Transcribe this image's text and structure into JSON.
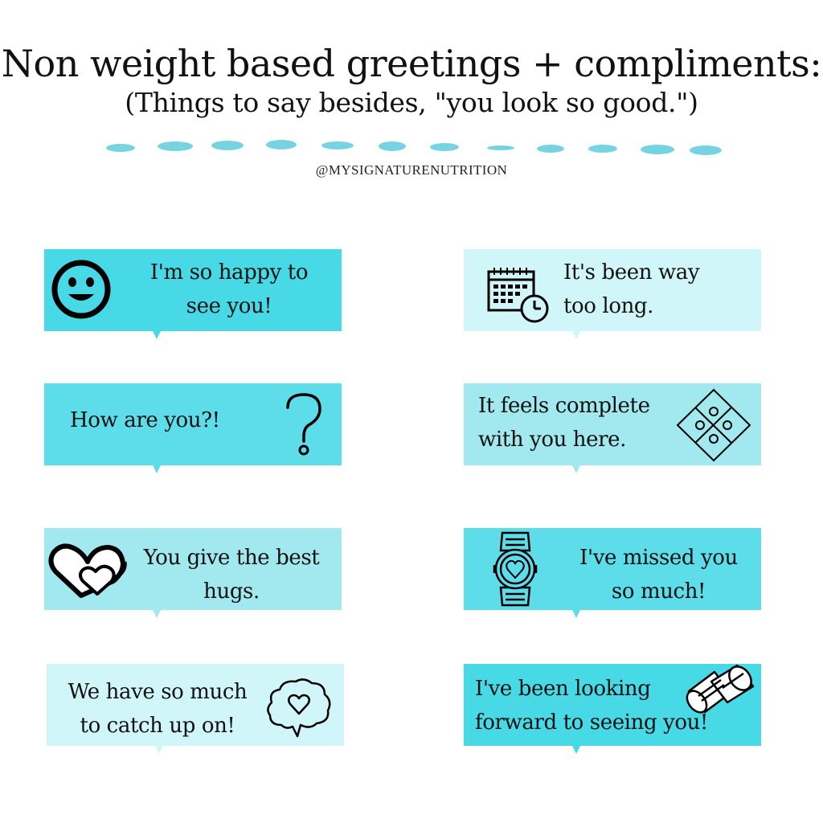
{
  "header": {
    "title": "Non weight based greetings + compliments:",
    "subtitle": "(Things to say besides, \"you look so good.\")",
    "handle": "@MYSIGNATURENUTRITION"
  },
  "colors": {
    "cyan": "#47d9e6",
    "light_cyan": "#d0f6fa",
    "pale_cyan": "#a2e8ef",
    "mid_cyan": "#5ddde9",
    "dash": "#76d3e2"
  },
  "cards": [
    {
      "line1": "I'm so happy to",
      "line2": "see you!",
      "icon": "smiley-face-icon",
      "color": "#47d9e6"
    },
    {
      "line1": "It's been way",
      "line2": "too long.",
      "icon": "calendar-clock-icon",
      "color": "#d0f6fa"
    },
    {
      "line1": "How are you?!",
      "icon": "question-mark-icon",
      "color": "#5ddde9"
    },
    {
      "line1": "It feels complete",
      "line2": "with you here.",
      "icon": "puzzle-icon",
      "color": "#a2e8ef"
    },
    {
      "line1": "You give the best",
      "line2": "hugs.",
      "icon": "hearts-icon",
      "color": "#a2e8ef"
    },
    {
      "line1": "I've missed you",
      "line2": "so much!",
      "icon": "heart-watch-icon",
      "color": "#5ddde9"
    },
    {
      "line1": "We have so much",
      "line2": "to catch up on!",
      "icon": "heart-speech-bubble-icon",
      "color": "#d0f6fa"
    },
    {
      "line1": "I've been looking",
      "line2": "forward to seeing you!",
      "icon": "binoculars-icon",
      "color": "#47d9e6"
    }
  ]
}
